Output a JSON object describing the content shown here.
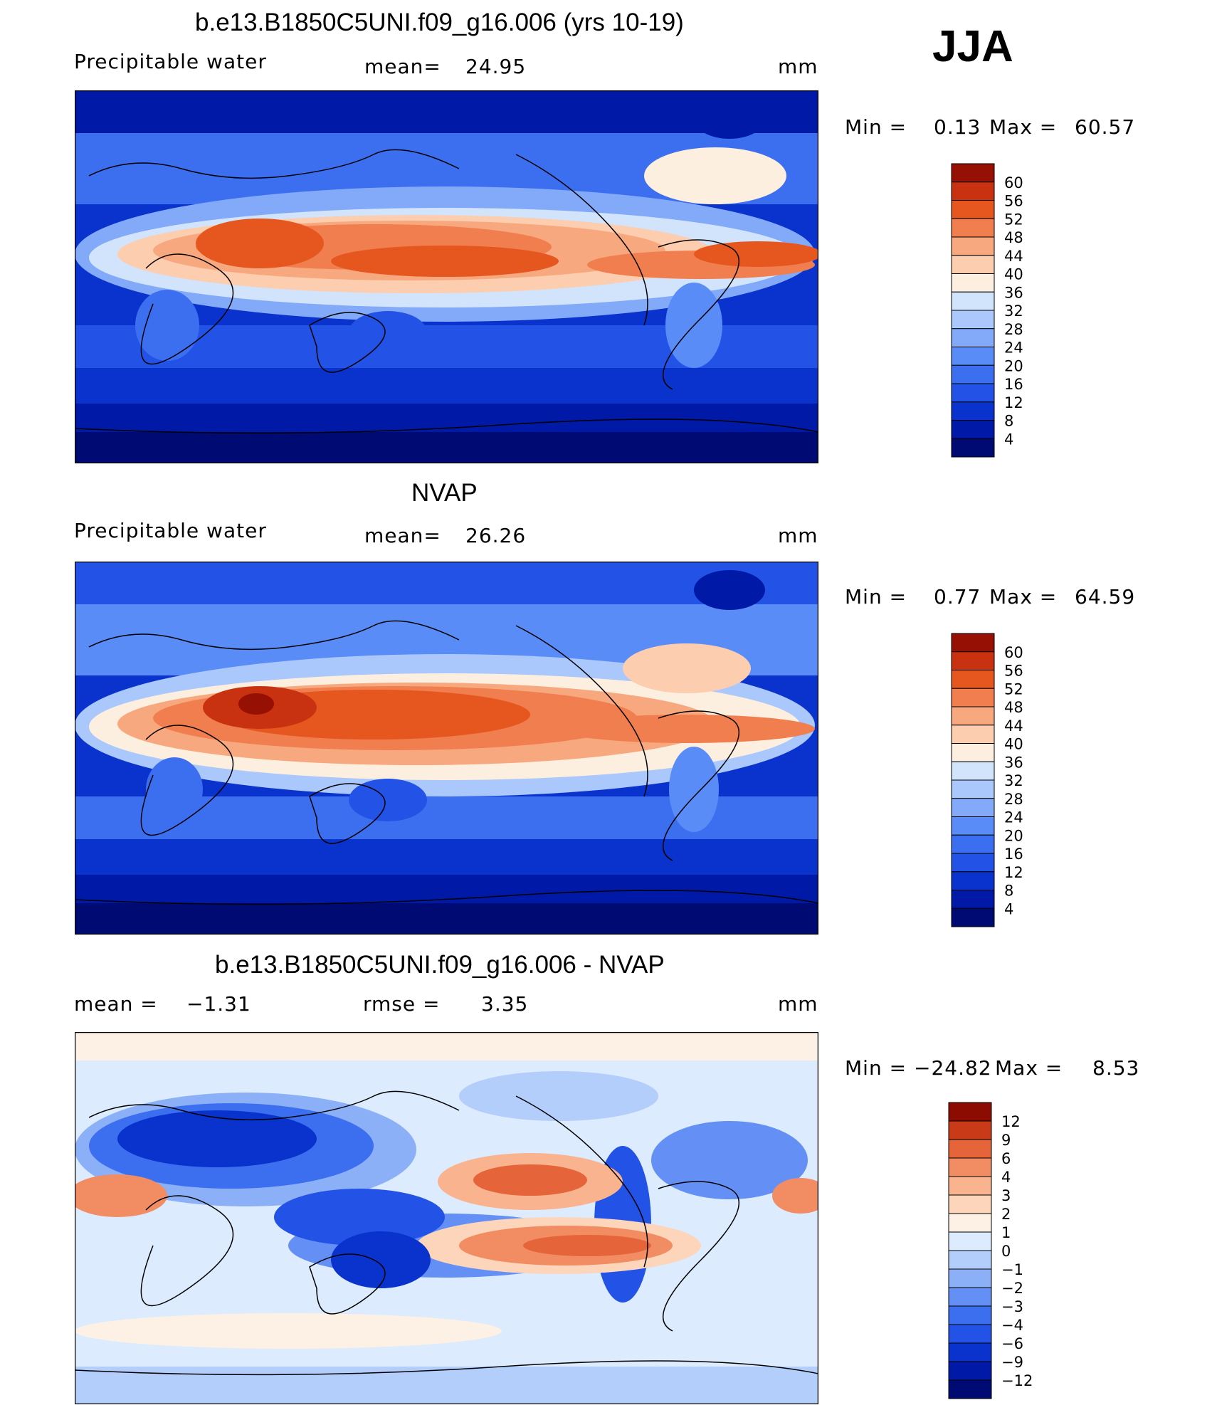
{
  "season": "JJA",
  "units": "mm",
  "panels": [
    {
      "title": "b.e13.B1850C5UNI.f09_g16.006 (yrs 10-19)",
      "left_label": "Precipitable water",
      "stat_label": "mean=",
      "stat_value": "24.95",
      "units": "mm",
      "min_label": "Min =",
      "min_value": "0.13",
      "max_label": "Max =",
      "max_value": "60.57",
      "colorbar_ticks": [
        "60",
        "56",
        "52",
        "48",
        "44",
        "40",
        "36",
        "32",
        "28",
        "24",
        "20",
        "16",
        "12",
        "8",
        "4"
      ]
    },
    {
      "title": "NVAP",
      "left_label": "Precipitable water",
      "stat_label": "mean=",
      "stat_value": "26.26",
      "units": "mm",
      "min_label": "Min =",
      "min_value": "0.77",
      "max_label": "Max =",
      "max_value": "64.59",
      "colorbar_ticks": [
        "60",
        "56",
        "52",
        "48",
        "44",
        "40",
        "36",
        "32",
        "28",
        "24",
        "20",
        "16",
        "12",
        "8",
        "4"
      ]
    },
    {
      "title": "b.e13.B1850C5UNI.f09_g16.006 - NVAP",
      "left_label": "mean =",
      "left_value": "−1.31",
      "stat_label": "rmse =",
      "stat_value": "3.35",
      "units": "mm",
      "min_label": "Min =",
      "min_value": "−24.82",
      "max_label": "Max =",
      "max_value": "8.53",
      "colorbar_ticks": [
        "12",
        "9",
        "6",
        "4",
        "3",
        "2",
        "1",
        "0",
        "−1",
        "−2",
        "−3",
        "−4",
        "−6",
        "−9",
        "−12"
      ]
    }
  ],
  "colors": {
    "abs_scale": [
      "#000a73",
      "#0019a6",
      "#0a32cc",
      "#2352e6",
      "#3c6ef0",
      "#5a8cf7",
      "#82aaf9",
      "#aac8fb",
      "#d2e4fc",
      "#fdefdf",
      "#fdcdaf",
      "#f8a87e",
      "#f07e4e",
      "#e6561f",
      "#c83210",
      "#961004"
    ],
    "diff_scale": [
      "#000a73",
      "#0019a6",
      "#0a32cc",
      "#2352e6",
      "#3c6ef0",
      "#6490f5",
      "#8cb0f8",
      "#b4cefb",
      "#dcebfd",
      "#fdf0e4",
      "#fdd5ba",
      "#f9b38f",
      "#f28c62",
      "#e6643a",
      "#c83a18",
      "#8c0c02"
    ]
  }
}
